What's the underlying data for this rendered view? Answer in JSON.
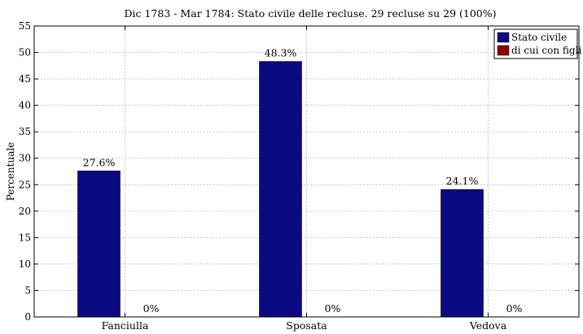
{
  "chart_data": {
    "type": "bar",
    "title": "Dic 1783 - Mar 1784: Stato civile delle recluse. 29 recluse su 29 (100%)",
    "xlabel": "",
    "ylabel": "Percentuale",
    "categories": [
      "Fanciulla",
      "Sposata",
      "Vedova"
    ],
    "series": [
      {
        "name": "Stato civile",
        "values": [
          27.6,
          48.3,
          24.1
        ],
        "labels": [
          "27.6%",
          "48.3%",
          "24.1%"
        ],
        "color": "#0a0a82"
      },
      {
        "name": "di cui con figli",
        "values": [
          0,
          0,
          0
        ],
        "labels": [
          "0%",
          "0%",
          "0%"
        ],
        "color": "#8b0000"
      }
    ],
    "ylim": [
      0,
      55
    ],
    "yticks": [
      0,
      5,
      10,
      15,
      20,
      25,
      30,
      35,
      40,
      45,
      50,
      55
    ],
    "grid": true,
    "legend": "top-right"
  }
}
